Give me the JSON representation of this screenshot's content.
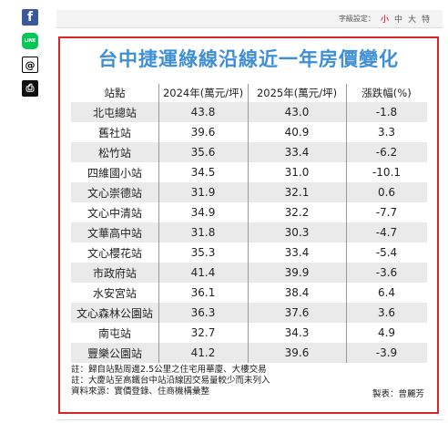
{
  "share": {
    "facebook_glyph": "f",
    "line_glyph": "LINE",
    "threads_glyph": "@",
    "print_glyph": "⎙"
  },
  "font_setting": {
    "label": "字級設定：",
    "sizes": [
      "小",
      "中",
      "大",
      "特"
    ],
    "active_index": 0,
    "active_color": "#cc0000"
  },
  "infographic": {
    "title": "台中捷運綠線沿線近一年房價變化",
    "title_color": "#3f8fd6",
    "frame_color": "#d5262b",
    "headers": [
      "站點",
      "2024年(萬元/坪)",
      "2025年(萬元/坪)",
      "漲跌幅(%)"
    ],
    "rows": [
      [
        "北屯總站",
        "43.8",
        "43.0",
        "-1.8"
      ],
      [
        "舊社站",
        "39.6",
        "40.9",
        "3.3"
      ],
      [
        "松竹站",
        "35.6",
        "33.4",
        "-6.2"
      ],
      [
        "四維國小站",
        "34.5",
        "31.0",
        "-10.1"
      ],
      [
        "文心崇德站",
        "31.9",
        "32.1",
        "0.6"
      ],
      [
        "文心中清站",
        "34.9",
        "32.2",
        "-7.7"
      ],
      [
        "文華高中站",
        "31.8",
        "30.3",
        "-4.7"
      ],
      [
        "文心櫻花站",
        "35.3",
        "33.4",
        "-5.4"
      ],
      [
        "市政府站",
        "41.4",
        "39.9",
        "-3.6"
      ],
      [
        "水安宮站",
        "36.1",
        "38.4",
        "6.4"
      ],
      [
        "文心森林公園站",
        "36.3",
        "37.6",
        "3.6"
      ],
      [
        "南屯站",
        "32.7",
        "34.3",
        "4.9"
      ],
      [
        "豐樂公園站",
        "41.2",
        "39.6",
        "-3.9"
      ]
    ],
    "notes": [
      "註：歸自站點周邊2.5公里之住宅用華廈、大樓交易",
      "註：大慶站至高鐵台中站沿線因交易量較少而未列入",
      "資料來源：實價登錄、住商機構彙整"
    ],
    "credit": "製表：曾麗芳"
  }
}
